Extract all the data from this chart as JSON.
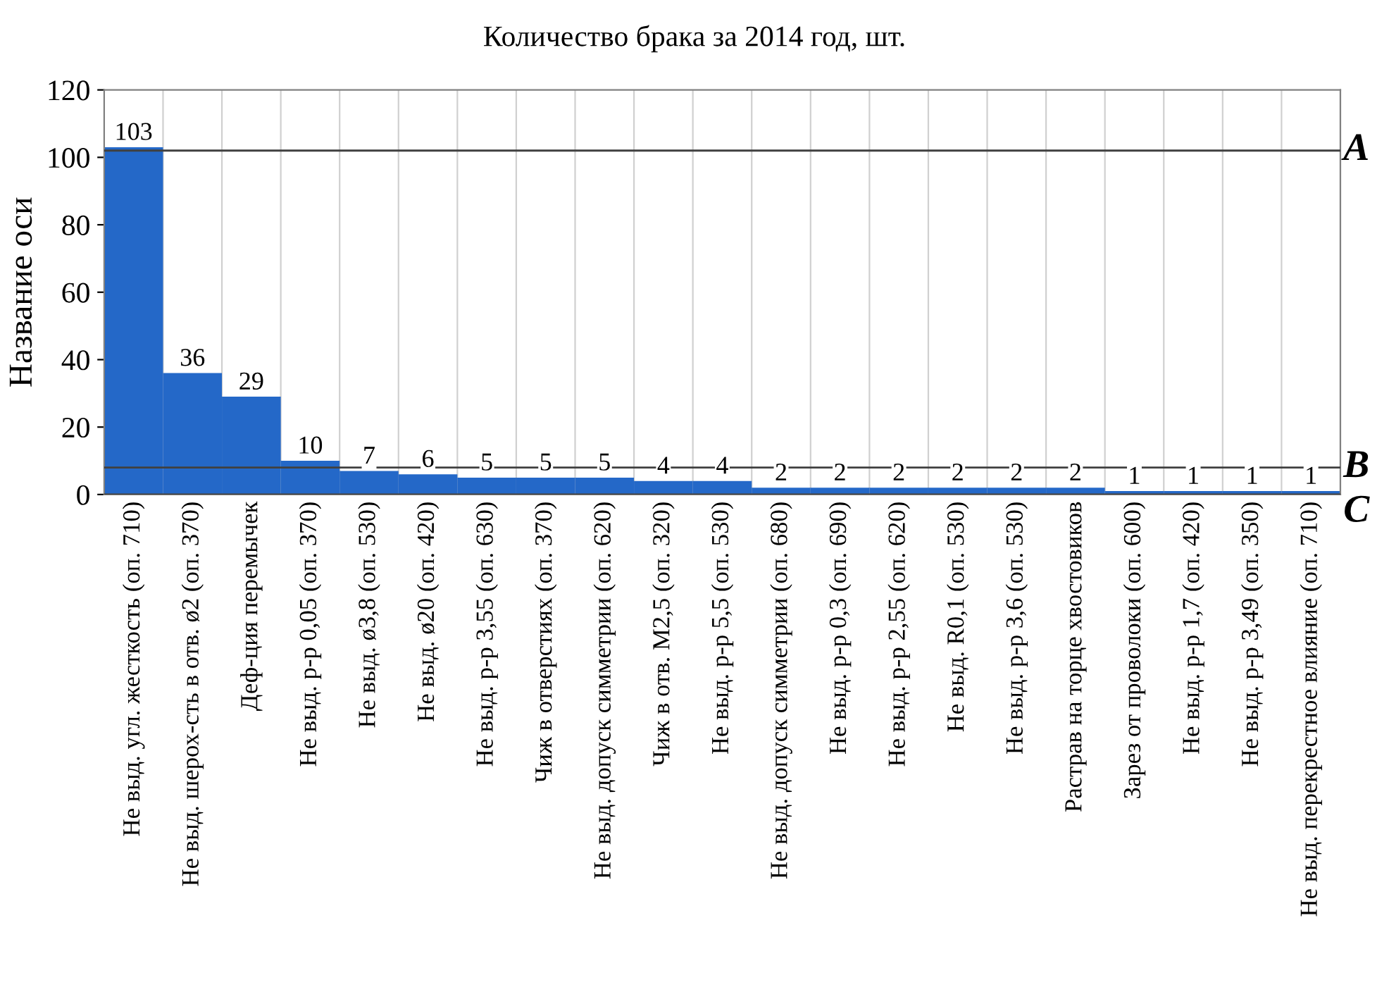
{
  "chart_data": {
    "type": "bar",
    "title": "Количество брака за 2014 год, шт.",
    "ylabel": "Название оси",
    "categories": [
      "Не выд. угл. жесткость (оп. 710)",
      "Не выд. шерох-сть в отв. ø2 (оп. 370)",
      "Деф-ция перемычек",
      "Не выд. р-р 0,05 (оп. 370)",
      "Не выд. ø3,8 (оп. 530)",
      "Не выд. ø20 (оп. 420)",
      "Не выд. р-р 3,55 (оп. 630)",
      "Чиж в отверстиях (оп. 370)",
      "Не выд. допуск симметрии (оп. 620)",
      "Чиж в отв. М2,5 (оп. 320)",
      "Не выд. р-р 5,5 (оп. 530)",
      "Не выд. допуск симметрии (оп. 680)",
      "Не выд. р-р 0,3 (оп. 690)",
      "Не выд. р-р 2,55 (оп. 620)",
      "Не выд. R0,1 (оп. 530)",
      "Не выд. р-р 3,6 (оп. 530)",
      "Растрав на торце хвостовиков",
      "Зарез от проволоки (оп. 600)",
      "Не выд. р-р 1,7 (оп. 420)",
      "Не выд. р-р 3,49 (оп. 350)",
      "Не выд. перекрестное влияние (оп. 710)"
    ],
    "values": [
      103,
      36,
      29,
      10,
      7,
      6,
      5,
      5,
      5,
      4,
      4,
      2,
      2,
      2,
      2,
      2,
      2,
      1,
      1,
      1,
      1
    ],
    "color": "#2468c8",
    "data_labels": true,
    "ylim": [
      0,
      120
    ],
    "yticks": [
      0,
      20,
      40,
      60,
      80,
      100,
      120
    ],
    "grid": "x",
    "ref_lines": [
      {
        "axis": "y",
        "value": 102,
        "label": "A",
        "color": "#404040"
      },
      {
        "axis": "y",
        "value": 8,
        "label": "B",
        "color": "#404040"
      },
      {
        "axis": "y",
        "value": 0,
        "label": "C",
        "color": "#404040"
      }
    ]
  }
}
